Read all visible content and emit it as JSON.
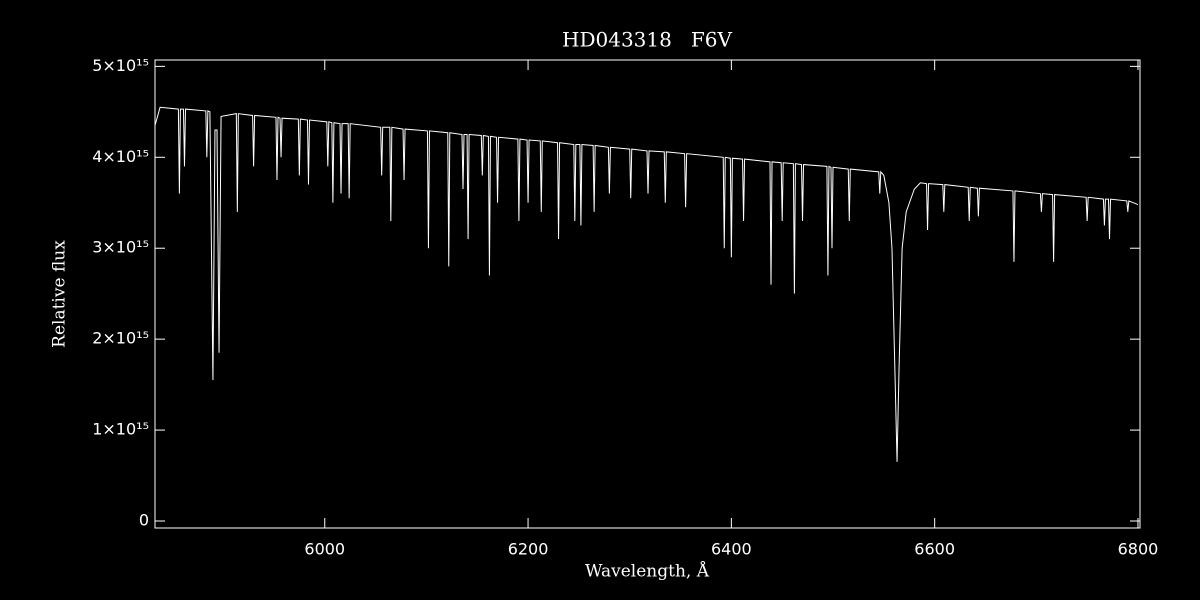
{
  "chart_data": {
    "type": "line",
    "title": "HD043318   F6V",
    "xlabel": "Wavelength, Å",
    "ylabel": "Relative flux",
    "xlim": [
      5833,
      6802
    ],
    "ylim": [
      -77000000000000.0,
      5070000000000000.0
    ],
    "xticks": [
      6000,
      6200,
      6400,
      6600,
      6800
    ],
    "yticks": [
      0,
      {
        "value": 1000000000000000.0,
        "label": "1×10¹⁵"
      },
      {
        "value": 2000000000000000.0,
        "label": "2×10¹⁵"
      },
      {
        "value": 3000000000000000.0,
        "label": "3×10¹⁵"
      },
      {
        "value": 4000000000000000.0,
        "label": "4×10¹⁵"
      },
      {
        "value": 5000000000000000.0,
        "label": "5×10¹⁵"
      }
    ],
    "series": [
      {
        "color": "#ffffff",
        "x": [
          5833,
          5838,
          5856,
          5857,
          5858,
          5861,
          5862,
          5863,
          5883,
          5884,
          5885,
          5887,
          5890,
          5892,
          5894,
          5896,
          5898,
          5913,
          5914,
          5915,
          5929,
          5930,
          5931,
          5952,
          5953,
          5954,
          5956,
          5957,
          5958,
          5974,
          5975,
          5976,
          5983,
          5984,
          5985,
          6002,
          6003,
          6004,
          6007,
          6008,
          6009,
          6015,
          6016,
          6017,
          6023,
          6024,
          6025,
          6055,
          6056,
          6057,
          6064,
          6065,
          6066,
          6077,
          6078,
          6079,
          6101,
          6102,
          6103,
          6121,
          6122,
          6123,
          6135,
          6136,
          6137,
          6140,
          6141,
          6142,
          6154,
          6155,
          6156,
          6161,
          6162,
          6163,
          6169,
          6170,
          6171,
          6190,
          6191,
          6192,
          6199,
          6200,
          6201,
          6212,
          6213,
          6214,
          6229,
          6230,
          6231,
          6245,
          6246,
          6247,
          6251,
          6252,
          6253,
          6264,
          6265,
          6266,
          6279,
          6280,
          6281,
          6300,
          6301,
          6302,
          6317,
          6318,
          6319,
          6334,
          6335,
          6336,
          6354,
          6355,
          6356,
          6392,
          6393,
          6394,
          6399,
          6400,
          6401,
          6411,
          6412,
          6413,
          6438,
          6439,
          6440,
          6449,
          6450,
          6451,
          6461,
          6462,
          6463,
          6469,
          6470,
          6471,
          6494,
          6495,
          6496,
          6498,
          6499,
          6500,
          6515,
          6516,
          6517,
          6545,
          6546,
          6547,
          6550,
          6555,
          6558,
          6561,
          6563,
          6565,
          6568,
          6572,
          6580,
          6586,
          6592,
          6593,
          6594,
          6608,
          6609,
          6610,
          6633,
          6634,
          6635,
          6642,
          6643,
          6644,
          6677,
          6678,
          6679,
          6704,
          6705,
          6706,
          6716,
          6717,
          6718,
          6749,
          6750,
          6751,
          6766,
          6767,
          6768,
          6771,
          6772,
          6773,
          6789,
          6790,
          6791,
          6800
        ],
        "values": [
          4350000000000000.0,
          4550000000000000.0,
          4530000000000000.0,
          3600000000000000.0,
          4530000000000000.0,
          4530000000000000.0,
          3900000000000000.0,
          4530000000000000.0,
          4510000000000000.0,
          4000000000000000.0,
          4510000000000000.0,
          4500000000000000.0,
          1550000000000000.0,
          4300000000000000.0,
          4300000000000000.0,
          1850000000000000.0,
          4450000000000000.0,
          4480000000000000.0,
          3400000000000000.0,
          4480000000000000.0,
          4460000000000000.0,
          3900000000000000.0,
          4460000000000000.0,
          4440000000000000.0,
          3750000000000000.0,
          4440000000000000.0,
          4430000000000000.0,
          4000000000000000.0,
          4430000000000000.0,
          4420000000000000.0,
          3800000000000000.0,
          4420000000000000.0,
          4410000000000000.0,
          3700000000000000.0,
          4410000000000000.0,
          4390000000000000.0,
          3900000000000000.0,
          4390000000000000.0,
          4380000000000000.0,
          3500000000000000.0,
          4380000000000000.0,
          4370000000000000.0,
          3600000000000000.0,
          4370000000000000.0,
          4370000000000000.0,
          3550000000000000.0,
          4370000000000000.0,
          4330000000000000.0,
          3800000000000000.0,
          4330000000000000.0,
          4330000000000000.0,
          3300000000000000.0,
          4330000000000000.0,
          4310000000000000.0,
          3750000000000000.0,
          4310000000000000.0,
          4290000000000000.0,
          3000000000000000.0,
          4290000000000000.0,
          4270000000000000.0,
          2800000000000000.0,
          4270000000000000.0,
          4250000000000000.0,
          3650000000000000.0,
          4250000000000000.0,
          4250000000000000.0,
          3100000000000000.0,
          4250000000000000.0,
          4240000000000000.0,
          3800000000000000.0,
          4240000000000000.0,
          4230000000000000.0,
          2700000000000000.0,
          4230000000000000.0,
          4220000000000000.0,
          3500000000000000.0,
          4220000000000000.0,
          4200000000000000.0,
          3300000000000000.0,
          4200000000000000.0,
          4190000000000000.0,
          3500000000000000.0,
          4190000000000000.0,
          4180000000000000.0,
          3400000000000000.0,
          4180000000000000.0,
          4160000000000000.0,
          3100000000000000.0,
          4160000000000000.0,
          4140000000000000.0,
          3300000000000000.0,
          4140000000000000.0,
          4140000000000000.0,
          3250000000000000.0,
          4140000000000000.0,
          4130000000000000.0,
          3400000000000000.0,
          4130000000000000.0,
          4110000000000000.0,
          3600000000000000.0,
          4110000000000000.0,
          4090000000000000.0,
          3550000000000000.0,
          4090000000000000.0,
          4070000000000000.0,
          3600000000000000.0,
          4070000000000000.0,
          4060000000000000.0,
          3500000000000000.0,
          4060000000000000.0,
          4040000000000000.0,
          3450000000000000.0,
          4040000000000000.0,
          4000000000000000.0,
          3000000000000000.0,
          4000000000000000.0,
          3990000000000000.0,
          2900000000000000.0,
          3990000000000000.0,
          3980000000000000.0,
          3300000000000000.0,
          3980000000000000.0,
          3950000000000000.0,
          2600000000000000.0,
          3950000000000000.0,
          3940000000000000.0,
          3300000000000000.0,
          3940000000000000.0,
          3930000000000000.0,
          2500000000000000.0,
          3930000000000000.0,
          3920000000000000.0,
          3300000000000000.0,
          3920000000000000.0,
          3900000000000000.0,
          2700000000000000.0,
          3900000000000000.0,
          3890000000000000.0,
          3000000000000000.0,
          3890000000000000.0,
          3870000000000000.0,
          3300000000000000.0,
          3870000000000000.0,
          3840000000000000.0,
          3600000000000000.0,
          3840000000000000.0,
          3800000000000000.0,
          3500000000000000.0,
          3000000000000000.0,
          1600000000000000.0,
          650000000000000.0,
          1700000000000000.0,
          3000000000000000.0,
          3400000000000000.0,
          3650000000000000.0,
          3720000000000000.0,
          3710000000000000.0,
          3200000000000000.0,
          3710000000000000.0,
          3700000000000000.0,
          3400000000000000.0,
          3700000000000000.0,
          3670000000000000.0,
          3300000000000000.0,
          3670000000000000.0,
          3660000000000000.0,
          3350000000000000.0,
          3660000000000000.0,
          3630000000000000.0,
          2850000000000000.0,
          3630000000000000.0,
          3600000000000000.0,
          3400000000000000.0,
          3600000000000000.0,
          3590000000000000.0,
          2850000000000000.0,
          3590000000000000.0,
          3560000000000000.0,
          3300000000000000.0,
          3560000000000000.0,
          3540000000000000.0,
          3250000000000000.0,
          3540000000000000.0,
          3540000000000000.0,
          3100000000000000.0,
          3540000000000000.0,
          3520000000000000.0,
          3400000000000000.0,
          3520000000000000.0,
          3480000000000000.0
        ]
      }
    ]
  }
}
